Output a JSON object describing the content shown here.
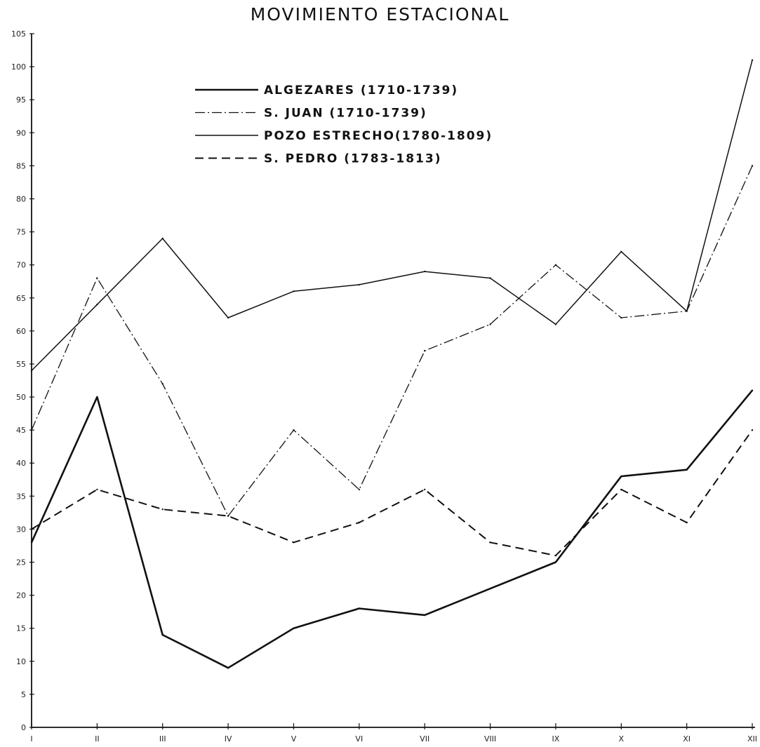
{
  "chart_data": {
    "type": "line",
    "title": "MOVIMIENTO ESTACIONAL",
    "xlabel": "",
    "ylabel": "",
    "categories": [
      "I",
      "II",
      "III",
      "IV",
      "V",
      "VI",
      "VII",
      "VIII",
      "IX",
      "X",
      "XI",
      "XII"
    ],
    "yticks": [
      0,
      5,
      10,
      15,
      20,
      25,
      30,
      35,
      40,
      45,
      50,
      55,
      60,
      65,
      70,
      75,
      80,
      85,
      90,
      95,
      100,
      105
    ],
    "ylim": [
      0,
      105
    ],
    "grid": false,
    "legend_position": "top-left",
    "series": [
      {
        "name": "ALGEZARES (1710-1739)",
        "style": "solid-thick",
        "values": [
          28,
          50,
          14,
          9,
          15,
          18,
          17,
          21,
          25,
          38,
          39,
          51
        ]
      },
      {
        "name": "S. JUAN (1710-1739)",
        "style": "dash-dot",
        "values": [
          45,
          68,
          52,
          32,
          45,
          36,
          57,
          61,
          70,
          62,
          63,
          85
        ]
      },
      {
        "name": "POZO ESTRECHO(1780-1809)",
        "style": "solid-thin",
        "values": [
          54,
          64,
          74,
          62,
          66,
          67,
          69,
          68,
          61,
          72,
          63,
          101
        ]
      },
      {
        "name": "S. PEDRO (1783-1813)",
        "style": "dashed",
        "values": [
          30,
          36,
          33,
          32,
          28,
          31,
          36,
          28,
          26,
          36,
          31,
          45
        ]
      }
    ]
  }
}
